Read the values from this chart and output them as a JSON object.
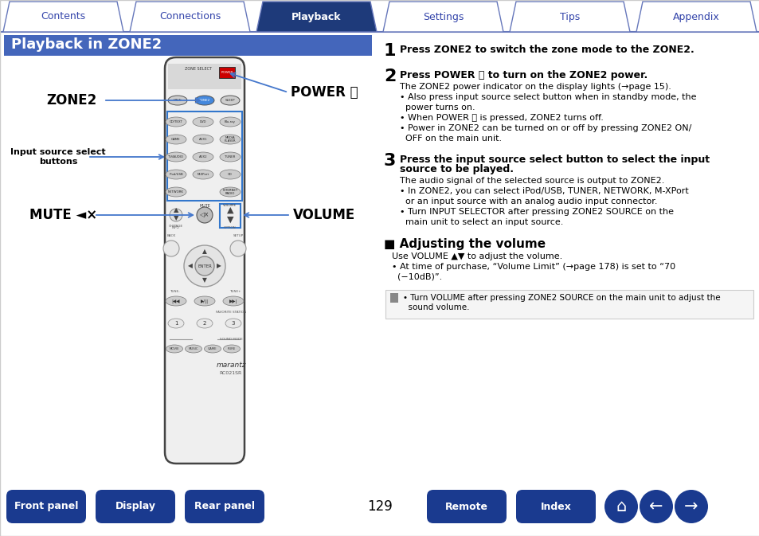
{
  "tab_labels": [
    "Contents",
    "Connections",
    "Playback",
    "Settings",
    "Tips",
    "Appendix"
  ],
  "active_tab": 2,
  "tab_active_bg": "#1e3a7a",
  "tab_inactive_bg": "#ffffff",
  "tab_border_color": "#6677bb",
  "tab_active_text": "#ffffff",
  "tab_inactive_text": "#3344aa",
  "section_title": "Playback in ZONE2",
  "section_title_bg": "#4466bb",
  "section_title_color": "#ffffff",
  "step1_title": "Press ZONE2 to switch the zone mode to the ZONE2.",
  "step2_title": "Press POWER ⏻ to turn on the ZONE2 power.",
  "step2_body": [
    "The ZONE2 power indicator on the display lights (→page 15).",
    "• Also press input source select button when in standby mode, the",
    "  power turns on.",
    "• When POWER ⏻ is pressed, ZONE2 turns off.",
    "• Power in ZONE2 can be turned on or off by pressing ZONE2 ON/",
    "  OFF on the main unit."
  ],
  "step3_title1": "Press the input source select button to select the input",
  "step3_title2": "source to be played.",
  "step3_body": [
    "The audio signal of the selected source is output to ZONE2.",
    "• In ZONE2, you can select iPod/USB, TUNER, NETWORK, M-XPort",
    "  or an input source with an analog audio input connector.",
    "• Turn INPUT SELECTOR after pressing ZONE2 SOURCE on the",
    "  main unit to select an input source."
  ],
  "adj_title": "■ Adjusting the volume",
  "adj_body": [
    "Use VOLUME ▲▼ to adjust the volume.",
    "• At time of purchase, “Volume Limit” (→page 178) is set to “70",
    "  (−10dB)”."
  ],
  "note_body": [
    "• Turn VOLUME after pressing ZONE2 SOURCE on the main unit to adjust the",
    "  sound volume."
  ],
  "bottom_buttons_left": [
    "Front panel",
    "Display",
    "Rear panel"
  ],
  "bottom_buttons_right": [
    "Remote",
    "Index"
  ],
  "page_number": "129",
  "bottom_btn_bg": "#1a3a8f",
  "bottom_btn_text": "#ffffff",
  "bg_color": "#ffffff"
}
